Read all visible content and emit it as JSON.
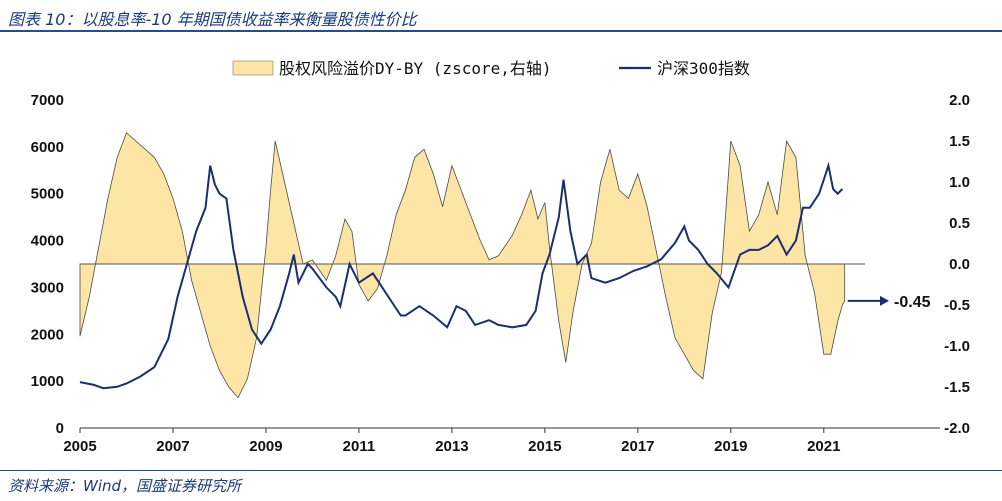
{
  "header": {
    "title": "图表 10：以股息率-10 年期国债收益率来衡量股债性价比"
  },
  "footer": {
    "source": "资料来源：Wind，国盛证券研究所"
  },
  "chart_data": {
    "type": "area",
    "legend_placement": "top-center",
    "grid": false,
    "x_ticks": [
      "2005",
      "2007",
      "2009",
      "2011",
      "2013",
      "2015",
      "2017",
      "2019",
      "2021"
    ],
    "xlim": [
      2005.0,
      2023.5
    ],
    "y_left": {
      "min": 0,
      "max": 7000,
      "ticks": [
        "0",
        "1000",
        "2000",
        "3000",
        "4000",
        "5000",
        "6000",
        "7000"
      ]
    },
    "y_right": {
      "min": -2.0,
      "max": 2.0,
      "ticks": [
        "-2.0",
        "-1.5",
        "-1.0",
        "-0.5",
        "0.0",
        "0.5",
        "1.0",
        "1.5",
        "2.0"
      ]
    },
    "annotation": {
      "label": "-0.45",
      "value": -0.45
    },
    "series": [
      {
        "name": "股权风险溢价DY-BY (zscore,右轴)",
        "kind": "area",
        "axis": "right",
        "color": "#fde5a6",
        "edge_color": "#4a4a4a",
        "points": [
          [
            2005.0,
            -0.88
          ],
          [
            2005.2,
            -0.4
          ],
          [
            2005.4,
            0.2
          ],
          [
            2005.6,
            0.8
          ],
          [
            2005.8,
            1.3
          ],
          [
            2006.0,
            1.6
          ],
          [
            2006.2,
            1.5
          ],
          [
            2006.4,
            1.4
          ],
          [
            2006.6,
            1.3
          ],
          [
            2006.8,
            1.1
          ],
          [
            2007.0,
            0.8
          ],
          [
            2007.2,
            0.4
          ],
          [
            2007.4,
            -0.2
          ],
          [
            2007.6,
            -0.6
          ],
          [
            2007.8,
            -1.0
          ],
          [
            2008.0,
            -1.3
          ],
          [
            2008.2,
            -1.5
          ],
          [
            2008.4,
            -1.63
          ],
          [
            2008.6,
            -1.4
          ],
          [
            2008.8,
            -0.9
          ],
          [
            2009.0,
            0.2
          ],
          [
            2009.1,
            0.9
          ],
          [
            2009.2,
            1.5
          ],
          [
            2009.4,
            1.0
          ],
          [
            2009.6,
            0.5
          ],
          [
            2009.8,
            0.0
          ],
          [
            2010.0,
            0.05
          ],
          [
            2010.3,
            -0.2
          ],
          [
            2010.5,
            0.1
          ],
          [
            2010.7,
            0.55
          ],
          [
            2010.85,
            0.4
          ],
          [
            2011.0,
            -0.25
          ],
          [
            2011.2,
            -0.45
          ],
          [
            2011.4,
            -0.3
          ],
          [
            2011.6,
            0.1
          ],
          [
            2011.8,
            0.6
          ],
          [
            2012.0,
            0.9
          ],
          [
            2012.2,
            1.3
          ],
          [
            2012.4,
            1.4
          ],
          [
            2012.6,
            1.1
          ],
          [
            2012.8,
            0.7
          ],
          [
            2013.0,
            1.2
          ],
          [
            2013.3,
            0.75
          ],
          [
            2013.6,
            0.3
          ],
          [
            2013.8,
            0.05
          ],
          [
            2014.0,
            0.1
          ],
          [
            2014.3,
            0.35
          ],
          [
            2014.5,
            0.6
          ],
          [
            2014.7,
            0.9
          ],
          [
            2014.85,
            0.55
          ],
          [
            2015.0,
            0.75
          ],
          [
            2015.1,
            0.2
          ],
          [
            2015.3,
            -0.7
          ],
          [
            2015.45,
            -1.2
          ],
          [
            2015.6,
            -0.6
          ],
          [
            2015.8,
            0.0
          ],
          [
            2016.0,
            0.25
          ],
          [
            2016.2,
            1.0
          ],
          [
            2016.4,
            1.4
          ],
          [
            2016.6,
            0.9
          ],
          [
            2016.8,
            0.8
          ],
          [
            2017.0,
            1.1
          ],
          [
            2017.2,
            0.7
          ],
          [
            2017.4,
            0.15
          ],
          [
            2017.6,
            -0.4
          ],
          [
            2017.8,
            -0.9
          ],
          [
            2018.0,
            -1.1
          ],
          [
            2018.2,
            -1.3
          ],
          [
            2018.4,
            -1.4
          ],
          [
            2018.6,
            -0.6
          ],
          [
            2018.8,
            -0.1
          ],
          [
            2019.0,
            1.5
          ],
          [
            2019.2,
            1.2
          ],
          [
            2019.4,
            0.4
          ],
          [
            2019.6,
            0.6
          ],
          [
            2019.8,
            1.0
          ],
          [
            2020.0,
            0.6
          ],
          [
            2020.2,
            1.5
          ],
          [
            2020.4,
            1.3
          ],
          [
            2020.6,
            0.1
          ],
          [
            2020.8,
            -0.35
          ],
          [
            2021.0,
            -1.1
          ],
          [
            2021.15,
            -1.1
          ],
          [
            2021.3,
            -0.7
          ],
          [
            2021.4,
            -0.5
          ],
          [
            2021.45,
            -0.45
          ]
        ]
      },
      {
        "name": "沪深300指数",
        "kind": "line",
        "axis": "left",
        "color": "#1b2f6e",
        "points": [
          [
            2005.0,
            980
          ],
          [
            2005.3,
            920
          ],
          [
            2005.5,
            850
          ],
          [
            2005.8,
            880
          ],
          [
            2006.0,
            950
          ],
          [
            2006.3,
            1100
          ],
          [
            2006.6,
            1300
          ],
          [
            2006.9,
            1900
          ],
          [
            2007.1,
            2800
          ],
          [
            2007.3,
            3500
          ],
          [
            2007.5,
            4200
          ],
          [
            2007.7,
            4700
          ],
          [
            2007.8,
            5600
          ],
          [
            2007.9,
            5200
          ],
          [
            2008.0,
            5000
          ],
          [
            2008.15,
            4900
          ],
          [
            2008.3,
            3800
          ],
          [
            2008.5,
            2800
          ],
          [
            2008.7,
            2100
          ],
          [
            2008.9,
            1800
          ],
          [
            2009.1,
            2100
          ],
          [
            2009.3,
            2600
          ],
          [
            2009.5,
            3300
          ],
          [
            2009.6,
            3700
          ],
          [
            2009.7,
            3100
          ],
          [
            2009.9,
            3500
          ],
          [
            2010.0,
            3400
          ],
          [
            2010.3,
            3000
          ],
          [
            2010.5,
            2800
          ],
          [
            2010.6,
            2600
          ],
          [
            2010.8,
            3500
          ],
          [
            2010.9,
            3300
          ],
          [
            2011.0,
            3100
          ],
          [
            2011.3,
            3300
          ],
          [
            2011.5,
            3000
          ],
          [
            2011.7,
            2700
          ],
          [
            2011.9,
            2400
          ],
          [
            2012.0,
            2400
          ],
          [
            2012.3,
            2600
          ],
          [
            2012.6,
            2400
          ],
          [
            2012.9,
            2150
          ],
          [
            2013.1,
            2600
          ],
          [
            2013.3,
            2500
          ],
          [
            2013.5,
            2200
          ],
          [
            2013.8,
            2300
          ],
          [
            2014.0,
            2200
          ],
          [
            2014.3,
            2150
          ],
          [
            2014.6,
            2200
          ],
          [
            2014.8,
            2500
          ],
          [
            2014.95,
            3300
          ],
          [
            2015.1,
            3700
          ],
          [
            2015.3,
            4500
          ],
          [
            2015.4,
            5300
          ],
          [
            2015.55,
            4200
          ],
          [
            2015.7,
            3500
          ],
          [
            2015.9,
            3700
          ],
          [
            2016.0,
            3200
          ],
          [
            2016.3,
            3100
          ],
          [
            2016.6,
            3200
          ],
          [
            2016.9,
            3350
          ],
          [
            2017.2,
            3450
          ],
          [
            2017.5,
            3600
          ],
          [
            2017.8,
            3950
          ],
          [
            2018.0,
            4300
          ],
          [
            2018.1,
            4000
          ],
          [
            2018.3,
            3800
          ],
          [
            2018.5,
            3500
          ],
          [
            2018.7,
            3300
          ],
          [
            2018.95,
            3000
          ],
          [
            2019.2,
            3700
          ],
          [
            2019.4,
            3800
          ],
          [
            2019.6,
            3800
          ],
          [
            2019.8,
            3900
          ],
          [
            2020.0,
            4100
          ],
          [
            2020.2,
            3700
          ],
          [
            2020.4,
            4000
          ],
          [
            2020.55,
            4700
          ],
          [
            2020.7,
            4700
          ],
          [
            2020.9,
            5000
          ],
          [
            2021.0,
            5300
          ],
          [
            2021.1,
            5600
          ],
          [
            2021.2,
            5100
          ],
          [
            2021.3,
            5000
          ],
          [
            2021.4,
            5100
          ]
        ]
      }
    ]
  }
}
